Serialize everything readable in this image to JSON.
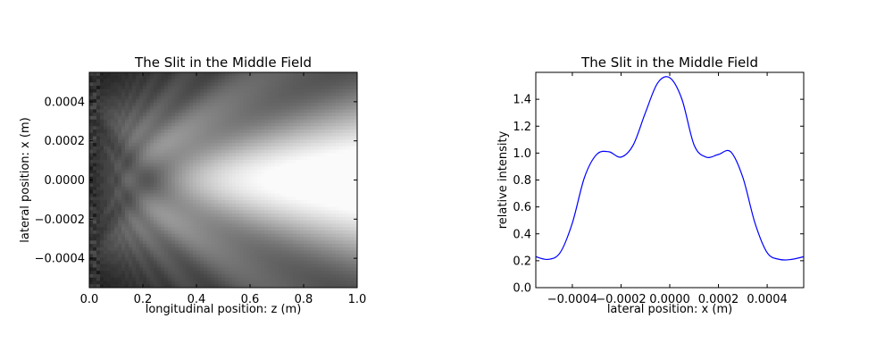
{
  "chart_data": [
    {
      "type": "heatmap",
      "title": "The Slit in the Middle Field",
      "xlabel": "longitudinal position: z (m)",
      "ylabel": "lateral position: x (m)",
      "xlim": [
        0.0,
        1.0
      ],
      "ylim": [
        -0.00055,
        0.00055
      ],
      "xticks": [
        "0.0",
        "0.2",
        "0.4",
        "0.6",
        "0.8",
        "1.0"
      ],
      "xtick_values": [
        0.0,
        0.2,
        0.4,
        0.6,
        0.8,
        1.0
      ],
      "yticks": [
        "−0.0004",
        "−0.0002",
        "0.0000",
        "0.0002",
        "0.0004"
      ],
      "ytick_values": [
        -0.0004,
        -0.0002,
        0.0,
        0.0002,
        0.0004
      ],
      "colormap": "gray",
      "slit_halfwidth": 0.0005,
      "grid": false
    },
    {
      "type": "line",
      "title": "The Slit in the Middle Field",
      "xlabel": "lateral position: x (m)",
      "ylabel": "relative intensity",
      "xlim": [
        -0.00055,
        0.00055
      ],
      "ylim": [
        0.0,
        1.6
      ],
      "xticks": [
        "−0.0004",
        "−0.0002",
        "0.0000",
        "0.0002",
        "0.0004"
      ],
      "xtick_values": [
        -0.0004,
        -0.0002,
        0.0,
        0.0002,
        0.0004
      ],
      "yticks": [
        "0.0",
        "0.2",
        "0.4",
        "0.6",
        "0.8",
        "1.0",
        "1.2",
        "1.4"
      ],
      "ytick_values": [
        0.0,
        0.2,
        0.4,
        0.6,
        0.8,
        1.0,
        1.2,
        1.4
      ],
      "grid": false,
      "series": [
        {
          "color": "#0000ff",
          "x": [
            -0.00055,
            -0.0005,
            -0.00045,
            -0.0004,
            -0.00035,
            -0.0003,
            -0.00025,
            -0.0002,
            -0.00015,
            -0.0001,
            -5e-05,
            0.0,
            5e-05,
            0.0001,
            0.00015,
            0.0002,
            0.00025,
            0.0003,
            0.00035,
            0.0004,
            0.00045,
            0.0005,
            0.00055
          ],
          "y": [
            0.23,
            0.21,
            0.26,
            0.48,
            0.82,
            0.99,
            1.01,
            0.97,
            1.06,
            1.3,
            1.52,
            1.56,
            1.4,
            1.06,
            0.97,
            0.99,
            1.01,
            0.82,
            0.48,
            0.26,
            0.21,
            0.21,
            0.23
          ]
        }
      ]
    }
  ]
}
